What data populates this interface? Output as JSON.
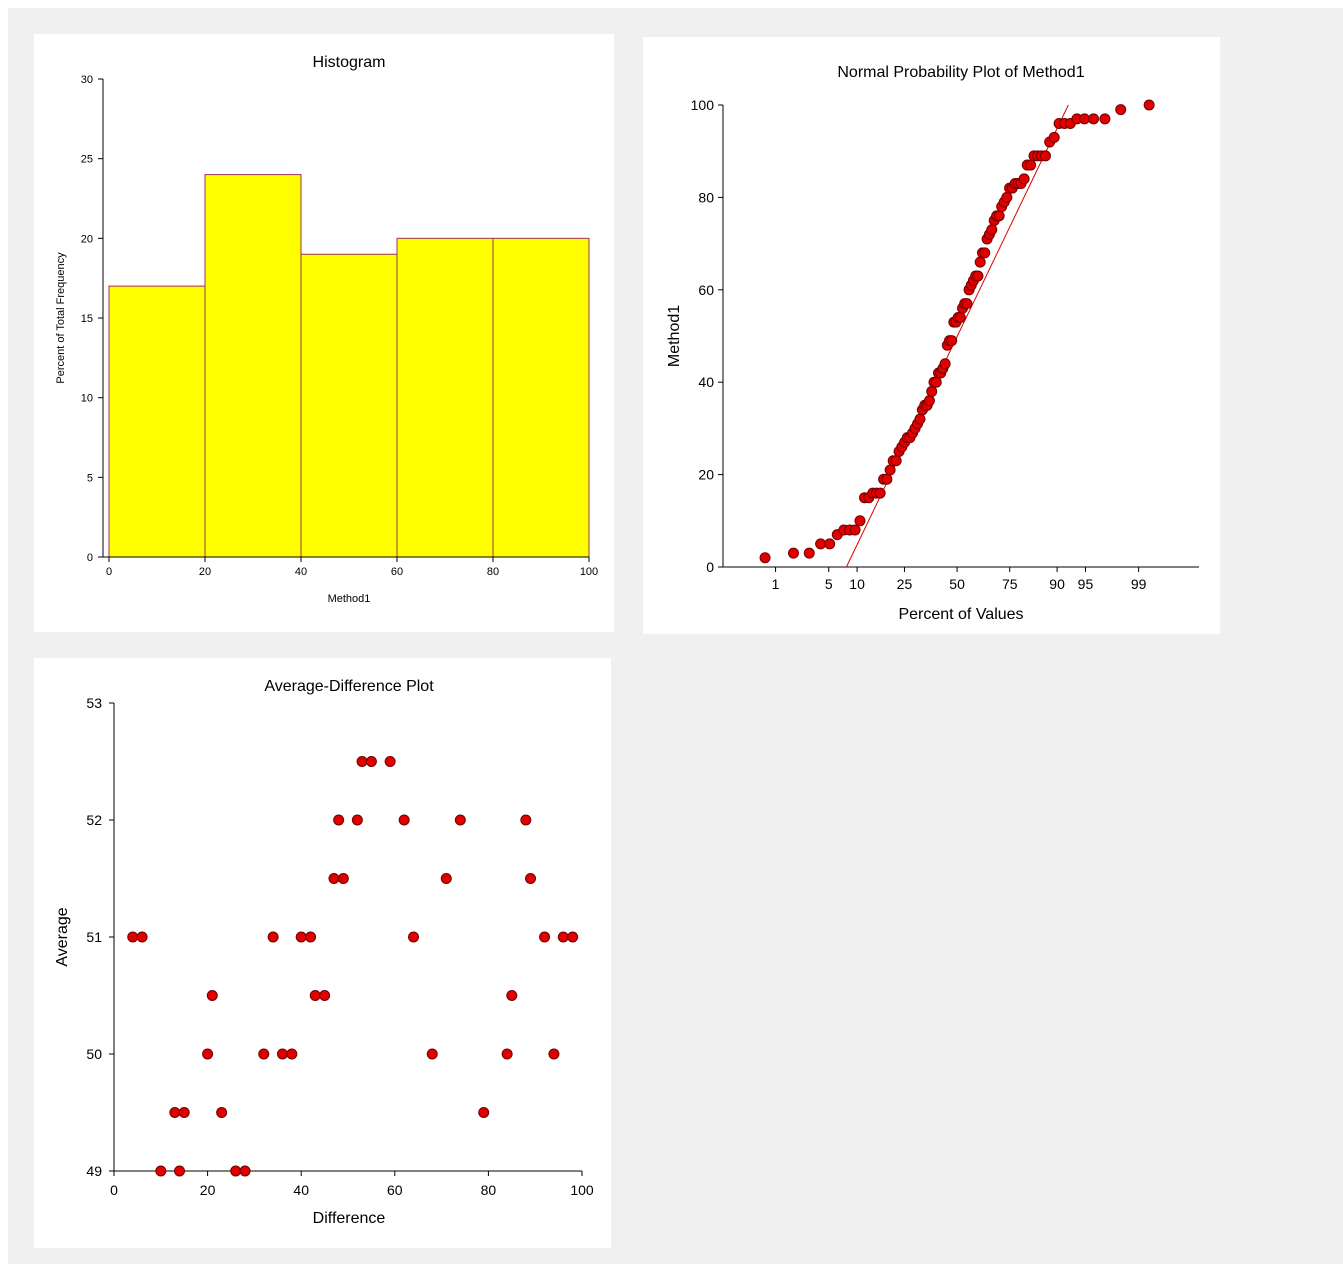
{
  "colors": {
    "background": "#f0f0f0",
    "panel": "#ffffff",
    "bar_fill": "#ffff00",
    "bar_edge": "#a0305a",
    "point_fill": "#e00000",
    "point_edge": "#700000",
    "fit_line": "#e00000"
  },
  "chart_data": [
    {
      "type": "bar",
      "title": "Histogram",
      "xlabel": "Method1",
      "ylabel": "Percent of Total Frequency",
      "bins": [
        [
          0,
          20
        ],
        [
          20,
          40
        ],
        [
          40,
          60
        ],
        [
          60,
          80
        ],
        [
          80,
          100
        ]
      ],
      "values": [
        17,
        24,
        19,
        20,
        20
      ],
      "xlim": [
        0,
        100
      ],
      "ylim": [
        0,
        30
      ],
      "xticks": [
        0,
        20,
        40,
        60,
        80,
        100
      ],
      "yticks": [
        0,
        5,
        10,
        15,
        20,
        25,
        30
      ],
      "grid": false
    },
    {
      "type": "scatter",
      "title": "Normal Probability Plot of Method1",
      "xlabel": "Percent of Values",
      "ylabel": "Method1",
      "x_scale": "normal-probability",
      "xticks": [
        1,
        5,
        10,
        25,
        50,
        75,
        90,
        95,
        99
      ],
      "yticks": [
        0,
        20,
        40,
        60,
        80,
        100
      ],
      "ylim": [
        0,
        100
      ],
      "values": [
        2,
        3,
        3,
        5,
        5,
        7,
        8,
        8,
        8,
        10,
        15,
        15,
        16,
        16,
        16,
        19,
        19,
        21,
        23,
        23,
        25,
        26,
        27,
        28,
        28,
        29,
        30,
        31,
        32,
        34,
        35,
        35,
        36,
        38,
        40,
        40,
        42,
        42,
        43,
        44,
        48,
        49,
        49,
        53,
        53,
        54,
        54,
        56,
        57,
        57,
        60,
        61,
        62,
        63,
        63,
        66,
        68,
        68,
        71,
        72,
        73,
        75,
        76,
        76,
        78,
        79,
        80,
        82,
        82,
        83,
        83,
        83,
        84,
        87,
        87,
        89,
        89,
        89,
        89,
        92,
        93,
        96,
        96,
        96,
        97,
        97,
        97,
        97,
        99,
        100
      ],
      "fit_line": {
        "x": [
          7.8,
          92.3
        ],
        "y": [
          0,
          100
        ]
      },
      "grid": false
    },
    {
      "type": "scatter",
      "title": "Average-Difference Plot",
      "xlabel": "Difference",
      "ylabel": "Average",
      "xlim": [
        0,
        100
      ],
      "ylim": [
        49,
        53
      ],
      "xticks": [
        0,
        20,
        40,
        60,
        80,
        100
      ],
      "yticks": [
        49,
        50,
        51,
        52,
        53
      ],
      "x": [
        4,
        6,
        10,
        13,
        14,
        15,
        20,
        21,
        23,
        26,
        28,
        32,
        34,
        36,
        38,
        40,
        42,
        43,
        45,
        47,
        48,
        49,
        52,
        53,
        55,
        59,
        62,
        64,
        68,
        71,
        74,
        79,
        84,
        85,
        88,
        89,
        92,
        94,
        96,
        98
      ],
      "y": [
        51,
        51,
        49,
        49.5,
        49,
        49.5,
        50,
        50.5,
        49.5,
        49,
        49,
        50,
        51,
        50,
        50,
        51,
        51,
        50.5,
        50.5,
        51.5,
        52,
        51.5,
        52,
        52.5,
        52.5,
        52.5,
        52,
        51,
        50,
        51.5,
        52,
        49.5,
        50,
        50.5,
        52,
        51.5,
        51,
        50,
        51,
        51
      ],
      "grid": false
    }
  ]
}
